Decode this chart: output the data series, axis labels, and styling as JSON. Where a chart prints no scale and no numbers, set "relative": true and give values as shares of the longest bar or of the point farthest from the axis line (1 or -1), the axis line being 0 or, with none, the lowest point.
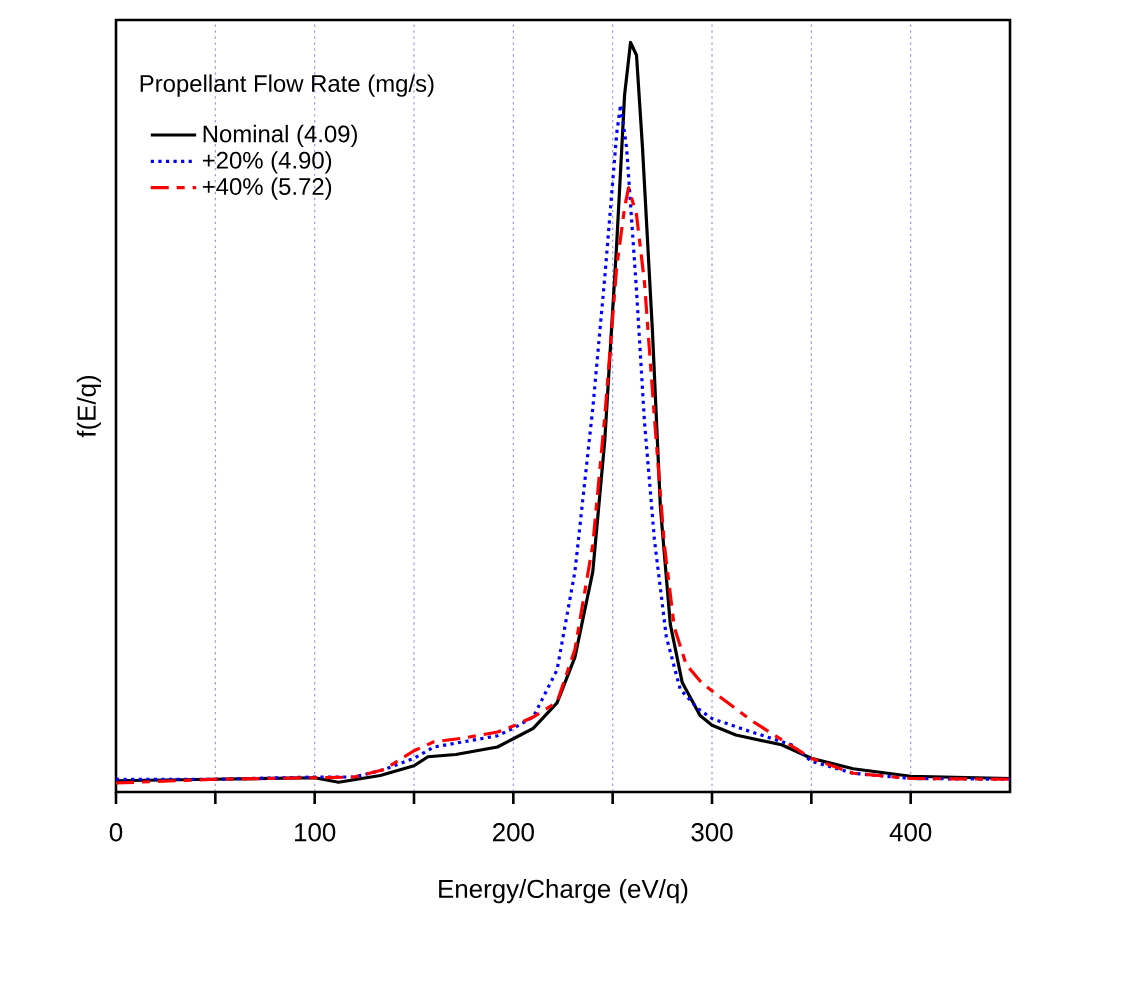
{
  "chart_data": {
    "type": "line",
    "relative": true,
    "xlabel": "Energy/Charge (eV/q)",
    "ylabel": "f(E/q)",
    "legend_title": "Propellant Flow Rate (mg/s)",
    "xlim": [
      0,
      450
    ],
    "xticks": [
      0,
      {
        "value": 50,
        "label": null
      },
      100,
      {
        "value": 150,
        "label": null
      },
      200,
      {
        "value": 250,
        "label": null
      },
      300,
      {
        "value": 350,
        "label": null
      },
      400
    ],
    "grid": "x",
    "legend": "top left",
    "tick_labels": "x",
    "series": [
      {
        "name": "Nominal (4.09)",
        "color": "#000000",
        "line_style": "solid",
        "x": [
          0,
          49,
          100,
          112,
          133,
          150,
          157,
          171,
          192,
          200,
          210,
          222,
          231,
          240,
          246,
          252,
          256,
          259,
          262,
          265,
          270,
          274,
          279,
          285,
          294,
          300,
          312,
          335,
          350,
          371,
          400,
          450
        ],
        "values": [
          0.015,
          0.017,
          0.019,
          0.013,
          0.022,
          0.035,
          0.047,
          0.05,
          0.06,
          0.071,
          0.085,
          0.119,
          0.18,
          0.294,
          0.468,
          0.73,
          0.93,
          1,
          0.983,
          0.86,
          0.616,
          0.381,
          0.224,
          0.146,
          0.102,
          0.089,
          0.076,
          0.063,
          0.045,
          0.031,
          0.021,
          0.018
        ]
      },
      {
        "name": "+20% (4.90)",
        "color": "#0000ff",
        "line_style": "dotted",
        "x": [
          0,
          50,
          100,
          120,
          135,
          150,
          160,
          192,
          200,
          210,
          222,
          231,
          240,
          246,
          252,
          254,
          257,
          262,
          266,
          271,
          277,
          284,
          293,
          300,
          320,
          340,
          350,
          371,
          400,
          450
        ],
        "values": [
          0.017,
          0.017,
          0.02,
          0.02,
          0.03,
          0.045,
          0.06,
          0.075,
          0.085,
          0.1,
          0.163,
          0.294,
          0.512,
          0.686,
          0.878,
          0.917,
          0.86,
          0.669,
          0.494,
          0.337,
          0.207,
          0.137,
          0.111,
          0.098,
          0.08,
          0.063,
          0.041,
          0.025,
          0.018,
          0.017
        ]
      },
      {
        "name": "+40% (5.72)",
        "color": "#ff0000",
        "line_style": "dashed",
        "x": [
          0,
          50,
          100,
          120,
          135,
          150,
          160,
          175,
          192,
          200,
          210,
          222,
          231,
          240,
          246,
          252,
          256,
          258,
          262,
          266,
          271,
          276,
          281,
          287,
          295,
          310,
          320,
          335,
          350,
          371,
          400,
          450
        ],
        "values": [
          0.012,
          0.017,
          0.019,
          0.02,
          0.03,
          0.055,
          0.067,
          0.072,
          0.08,
          0.088,
          0.1,
          0.12,
          0.19,
          0.33,
          0.5,
          0.7,
          0.78,
          0.806,
          0.77,
          0.68,
          0.5,
          0.33,
          0.22,
          0.17,
          0.145,
          0.115,
          0.095,
          0.07,
          0.045,
          0.025,
          0.018,
          0.017
        ]
      }
    ]
  }
}
